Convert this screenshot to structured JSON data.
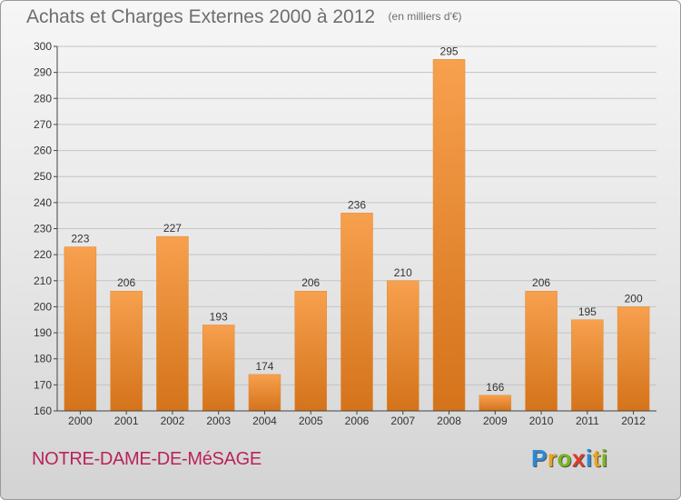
{
  "header": {
    "title": "Achats et Charges Externes 2000 à 2012",
    "unit": "(en milliers d'€)"
  },
  "footer": {
    "commune": "NOTRE-DAME-DE-MéSAGE",
    "logo_letters": [
      "P",
      "r",
      "o",
      "x",
      "i",
      "t",
      "i"
    ],
    "logo_colors": [
      "#2a8ad6",
      "#e8a41a",
      "#7ab51d",
      "#e03a2a",
      "#2a8ad6",
      "#e8a41a",
      "#7ab51d"
    ]
  },
  "colors": {
    "bar_light": "#f7a04e",
    "bar_dark": "#d4731a",
    "grid": "#c4c4c4",
    "axis": "#444444"
  },
  "chart_data": {
    "type": "bar",
    "title": "Achats et Charges Externes 2000 à 2012",
    "subtitle": "(en milliers d'€)",
    "categories": [
      "2000",
      "2001",
      "2002",
      "2003",
      "2004",
      "2005",
      "2006",
      "2007",
      "2008",
      "2009",
      "2010",
      "2011",
      "2012"
    ],
    "values": [
      223,
      206,
      227,
      193,
      174,
      206,
      236,
      210,
      295,
      166,
      206,
      195,
      200
    ],
    "ylim": [
      160,
      300
    ],
    "yticks": [
      160,
      170,
      180,
      190,
      200,
      210,
      220,
      230,
      240,
      250,
      260,
      270,
      280,
      290,
      300
    ],
    "grid": true,
    "data_labels": true
  }
}
